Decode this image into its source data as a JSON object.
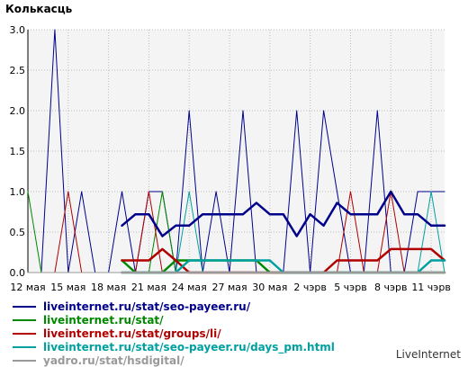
{
  "title": "Колькасць",
  "credit": "LiveInternet",
  "chart_data": {
    "type": "line",
    "x": [
      "12 мая",
      "13 мая",
      "14 мая",
      "15 мая",
      "16 мая",
      "17 мая",
      "18 мая",
      "19 мая",
      "20 мая",
      "21 мая",
      "22 мая",
      "23 мая",
      "24 мая",
      "25 мая",
      "26 мая",
      "27 мая",
      "28 мая",
      "29 мая",
      "30 мая",
      "31 мая",
      "1 чэрв",
      "2 чэрв",
      "3 чэрв",
      "4 чэрв",
      "5 чэрв",
      "6 чэрв",
      "7 чэрв",
      "8 чэрв",
      "9 чэрв",
      "10 чэрв",
      "11 чэрв",
      "12 чэрв"
    ],
    "x_tick_labels": [
      "12 мая",
      "15 мая",
      "18 мая",
      "21 мая",
      "24 мая",
      "27 мая",
      "30 мая",
      "2 чэрв",
      "5 чэрв",
      "8 чэрв",
      "11 чэрв"
    ],
    "ylim": [
      0,
      3.0
    ],
    "y_ticks": [
      "0.0",
      "0.5",
      "1.0",
      "1.5",
      "2.0",
      "2.5",
      "3.0"
    ],
    "grid": true,
    "legend_position": "bottom-left",
    "plot_background": "#f4f4f4",
    "series": [
      {
        "name": "liveinternet.ru/stat/seo-payeer.ru/",
        "color": "#00008b",
        "width": 1,
        "values": [
          0,
          0,
          3,
          0,
          1,
          0,
          0,
          1,
          0,
          1,
          1,
          0,
          2,
          0,
          1,
          0,
          2,
          0,
          0,
          0,
          2,
          0,
          2,
          1,
          0,
          0,
          2,
          0,
          0,
          1,
          1,
          1
        ]
      },
      {
        "name": "liveinternet.ru/stat/seo-payeer.ru/ (avg)",
        "legend": false,
        "color": "#00008b",
        "width": 2.5,
        "values": [
          null,
          null,
          null,
          null,
          null,
          null,
          null,
          0.58,
          0.72,
          0.72,
          0.45,
          0.58,
          0.58,
          0.72,
          0.72,
          0.72,
          0.72,
          0.86,
          0.72,
          0.72,
          0.45,
          0.72,
          0.58,
          0.86,
          0.72,
          0.72,
          0.72,
          1.0,
          0.72,
          0.72,
          0.58,
          0.58
        ]
      },
      {
        "name": "liveinternet.ru/stat/",
        "color": "#008800",
        "width": 1,
        "values": [
          1,
          0,
          0,
          0,
          0,
          0,
          0,
          0,
          0,
          0,
          1,
          0,
          0,
          0,
          0,
          0,
          0,
          0,
          0,
          0,
          0,
          0,
          0,
          0,
          0,
          0,
          0,
          0,
          0,
          0,
          0,
          0
        ]
      },
      {
        "name": "liveinternet.ru/stat/ (avg)",
        "legend": false,
        "color": "#008800",
        "width": 2.5,
        "values": [
          null,
          null,
          null,
          null,
          null,
          null,
          null,
          0.15,
          0,
          0,
          0,
          0.15,
          0.15,
          0.15,
          0.15,
          0.15,
          0.15,
          0.15,
          0,
          0,
          0,
          0,
          0,
          0,
          0,
          0,
          0,
          0,
          0,
          0,
          0,
          0
        ]
      },
      {
        "name": "liveinternet.ru/stat/groups/li/",
        "color": "#b00000",
        "width": 1,
        "values": [
          0,
          0,
          0,
          1,
          0,
          0,
          0,
          0,
          0,
          1,
          0,
          0,
          0,
          0,
          0,
          0,
          0,
          0,
          0,
          0,
          0,
          0,
          0,
          0,
          1,
          0,
          0,
          1,
          0,
          0,
          0,
          0
        ]
      },
      {
        "name": "liveinternet.ru/stat/groups/li/ (avg)",
        "legend": false,
        "color": "#b00000",
        "width": 2.5,
        "values": [
          null,
          null,
          null,
          null,
          null,
          null,
          null,
          0.15,
          0.15,
          0.15,
          0.29,
          0.15,
          0,
          0,
          0,
          0,
          0,
          0,
          0,
          0,
          0,
          0,
          0,
          0.15,
          0.15,
          0.15,
          0.15,
          0.29,
          0.29,
          0.29,
          0.29,
          0.15
        ]
      },
      {
        "name": "liveinternet.ru/stat/seo-payeer.ru/days_pm.html",
        "color": "#00a0a0",
        "width": 1,
        "values": [
          0,
          0,
          0,
          0,
          0,
          0,
          0,
          0,
          0,
          0,
          0,
          0,
          1,
          0,
          0,
          0,
          0,
          0,
          0,
          0,
          0,
          0,
          0,
          0,
          0,
          0,
          0,
          0,
          0,
          0,
          1,
          0
        ]
      },
      {
        "name": "liveinternet.ru/stat/seo-payeer.ru/days_pm.html (avg)",
        "legend": false,
        "color": "#00a0a0",
        "width": 2.5,
        "values": [
          null,
          null,
          null,
          null,
          null,
          null,
          null,
          0,
          0,
          0,
          0,
          0,
          0.15,
          0.15,
          0.15,
          0.15,
          0.15,
          0.15,
          0.15,
          0,
          0,
          0,
          0,
          0,
          0,
          0,
          0,
          0,
          0,
          0,
          0.15,
          0.15
        ]
      },
      {
        "name": "yadro.ru/stat/hsdigital/",
        "color": "#999999",
        "width": 1,
        "values": [
          0,
          0,
          0,
          0,
          0,
          0,
          0,
          0,
          0,
          0,
          0,
          0,
          0,
          0,
          0,
          0,
          0,
          0,
          0,
          0,
          0,
          0,
          0,
          0,
          0,
          0,
          0,
          0,
          0,
          0,
          0,
          0
        ]
      },
      {
        "name": "yadro.ru/stat/hsdigital/ (avg)",
        "legend": false,
        "color": "#999999",
        "width": 2.5,
        "values": [
          null,
          null,
          null,
          null,
          null,
          null,
          null,
          0,
          0,
          0,
          0,
          0,
          0,
          0,
          0,
          0,
          0,
          0,
          0,
          0,
          0,
          0,
          0,
          0,
          0,
          0,
          0,
          0,
          0,
          0,
          0,
          0
        ]
      }
    ]
  },
  "legend": [
    {
      "label": "liveinternet.ru/stat/seo-payeer.ru/",
      "color": "#00008b"
    },
    {
      "label": "liveinternet.ru/stat/",
      "color": "#008800"
    },
    {
      "label": "liveinternet.ru/stat/groups/li/",
      "color": "#b00000"
    },
    {
      "label": "liveinternet.ru/stat/seo-payeer.ru/days_pm.html",
      "color": "#00a0a0"
    },
    {
      "label": "yadro.ru/stat/hsdigital/",
      "color": "#999999"
    }
  ]
}
